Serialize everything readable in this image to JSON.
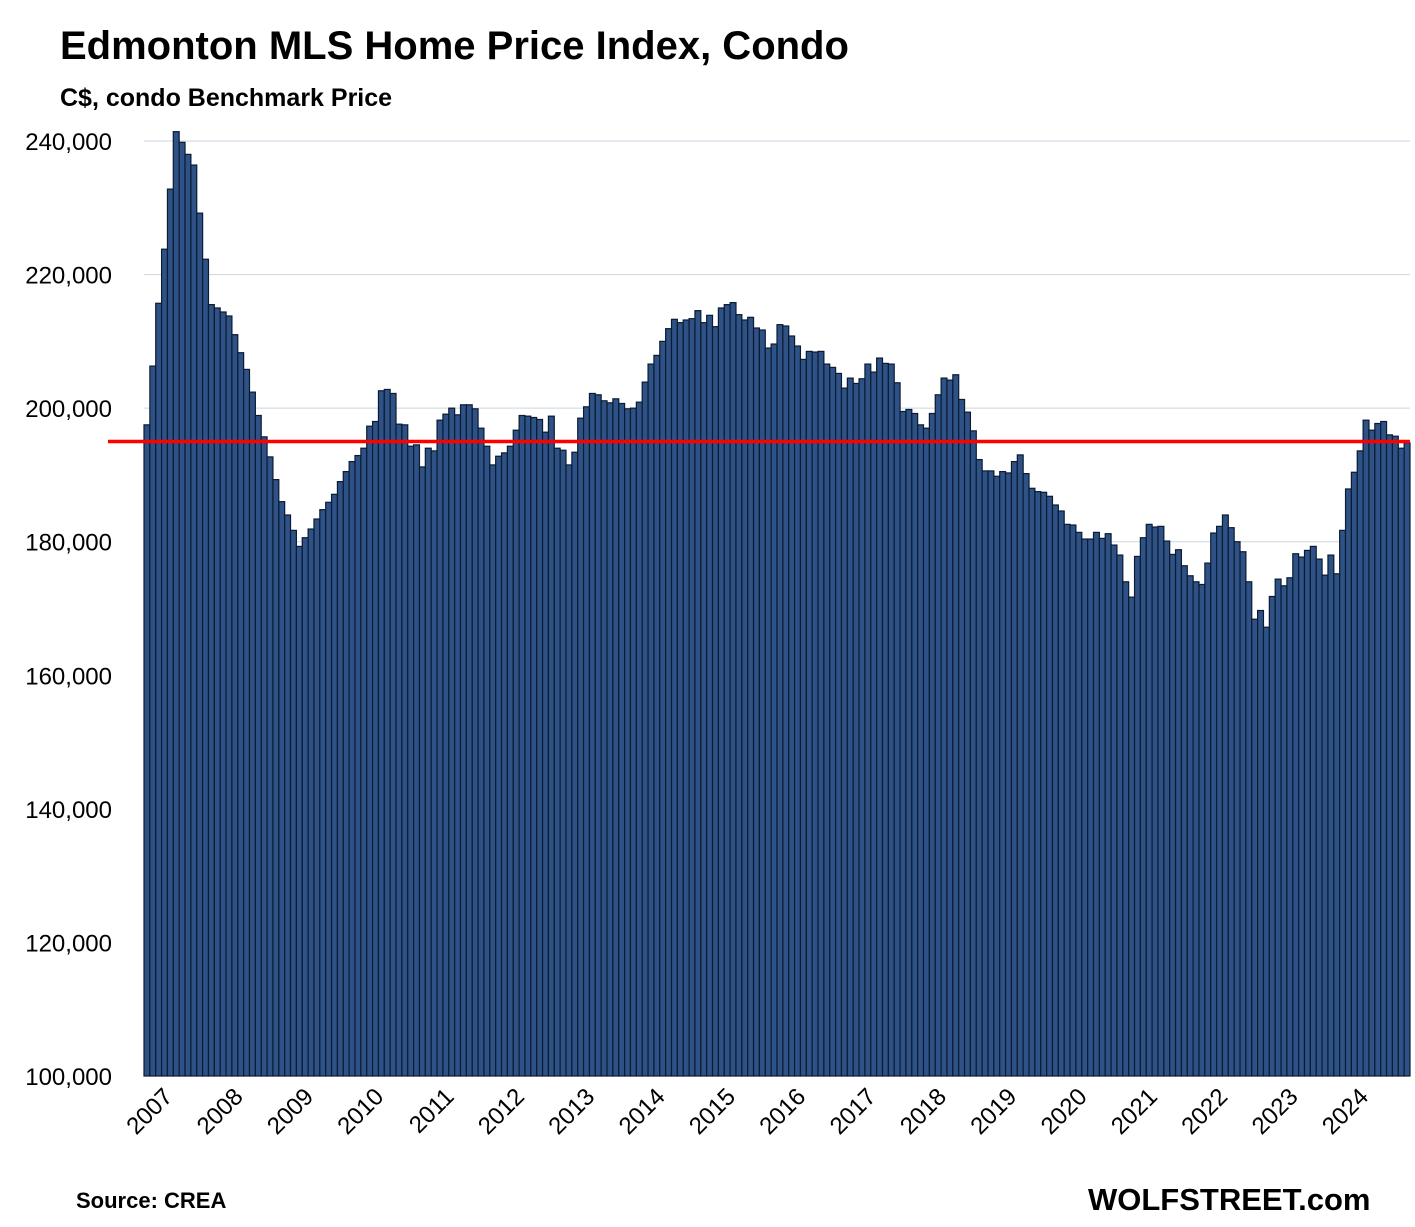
{
  "header": {
    "title": "Edmonton MLS Home Price Index, Condo",
    "subtitle": "C$, condo Benchmark Price"
  },
  "footer": {
    "source": "Source: CREA",
    "brand": "WOLFSTREET.com"
  },
  "chart_data": {
    "type": "bar",
    "title": "Edmonton MLS Home Price Index, Condo",
    "subtitle": "C$, condo Benchmark Price",
    "xlabel": "",
    "ylabel": "",
    "ylim": [
      100000,
      240000
    ],
    "yticks": [
      100000,
      120000,
      140000,
      160000,
      180000,
      200000,
      220000,
      240000
    ],
    "ytick_labels": [
      "100,000",
      "120,000",
      "140,000",
      "160,000",
      "180,000",
      "200,000",
      "220,000",
      "240,000"
    ],
    "x_tick_labels": [
      "2007",
      "2008",
      "2009",
      "2010",
      "2011",
      "2012",
      "2013",
      "2014",
      "2015",
      "2016",
      "2017",
      "2018",
      "2019",
      "2020",
      "2021",
      "2022",
      "2023",
      "2024"
    ],
    "frequency": "monthly",
    "start": "2007-01",
    "bar_color": "#2e5285",
    "reference_line": {
      "value": 195000,
      "color": "#ff0000"
    },
    "grid": true,
    "legend": "none",
    "series": [
      {
        "values": [
          197500,
          206300,
          215700,
          223800,
          232800,
          241400,
          239800,
          238000,
          236400,
          229200,
          222300,
          215500,
          215000,
          214400,
          213800,
          211000,
          208300,
          205800,
          202400,
          198900,
          195700,
          192700,
          189300,
          186000,
          184000,
          181700,
          179300,
          180600,
          181900,
          183400,
          184800,
          185900,
          187100,
          189000,
          190500,
          192000,
          192900,
          194000,
          197300,
          198000,
          202600,
          202800,
          202200,
          197600,
          197500,
          194300,
          194500,
          191200,
          194000,
          193600,
          198200,
          199100,
          200000,
          199000,
          200500,
          200500,
          199900,
          197000,
          194300,
          191500,
          192800,
          193300,
          194300,
          196700,
          198900,
          198800,
          198600,
          198300,
          196400,
          198800,
          194000,
          193700,
          191500,
          193400,
          198500,
          200200,
          202200,
          202000,
          201100,
          200800,
          201400,
          200700,
          199900,
          200000,
          200900,
          203900,
          206600,
          207900,
          210000,
          211900,
          213300,
          212800,
          213200,
          213400,
          214600,
          212800,
          213900,
          212200,
          215000,
          215500,
          215800,
          214000,
          213200,
          213600,
          212000,
          211700,
          209000,
          209600,
          212500,
          212300,
          210800,
          209300,
          207300,
          208500,
          208400,
          208500,
          206600,
          206100,
          205200,
          203000,
          204500,
          203700,
          204400,
          206600,
          205400,
          207500,
          206700,
          206600,
          203800,
          199500,
          199800,
          199200,
          197500,
          197000,
          199200,
          202000,
          204500,
          204200,
          205000,
          201300,
          199400,
          196600,
          192300,
          190600,
          190600,
          189800,
          190500,
          190300,
          192000,
          193000,
          190200,
          188000,
          187500,
          187400,
          186800,
          185500,
          184600,
          182600,
          182500,
          181400,
          180400,
          180400,
          181400,
          180500,
          181200,
          179500,
          178000,
          174000,
          171700,
          177800,
          180600,
          182600,
          182200,
          182300,
          180100,
          178100,
          178800,
          176400,
          174900,
          174000,
          173600,
          176800,
          181300,
          182300,
          184000,
          182100,
          180000,
          178500,
          174000,
          168400,
          169700,
          167200,
          171800,
          174400,
          173400,
          174600,
          178200,
          177700,
          178700,
          179300,
          177400,
          175000,
          178000,
          175200,
          181700,
          187900,
          190400,
          193600,
          198200,
          196700,
          197700,
          198000,
          196000,
          195800,
          194000,
          194800
        ]
      }
    ]
  }
}
